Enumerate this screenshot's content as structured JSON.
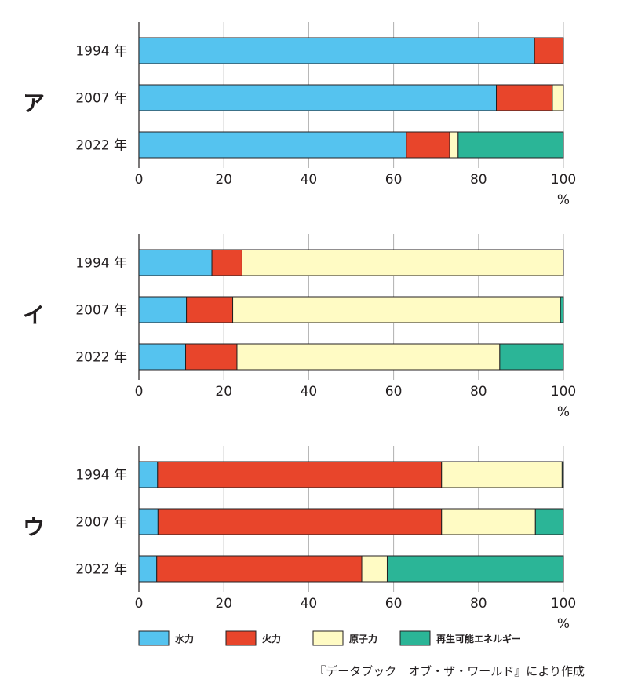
{
  "chart_data": [
    {
      "type": "bar",
      "orientation": "horizontal",
      "stacked": true,
      "panel_label": "ア",
      "categories": [
        "1994 年",
        "2007 年",
        "2022 年"
      ],
      "series": [
        {
          "name": "水力",
          "values": [
            93.2,
            84.2,
            63.0
          ]
        },
        {
          "name": "火力",
          "values": [
            6.8,
            13.2,
            10.2
          ]
        },
        {
          "name": "原子力",
          "values": [
            0.0,
            2.6,
            2.0
          ]
        },
        {
          "name": "再生可能エネルギー",
          "values": [
            0.0,
            0.0,
            24.8
          ]
        }
      ],
      "xlim": [
        0,
        100
      ],
      "xticks": [
        0,
        20,
        40,
        60,
        80,
        100
      ],
      "xunit": "%",
      "grid": true
    },
    {
      "type": "bar",
      "orientation": "horizontal",
      "stacked": true,
      "panel_label": "イ",
      "categories": [
        "1994 年",
        "2007 年",
        "2022 年"
      ],
      "series": [
        {
          "name": "水力",
          "values": [
            17.2,
            11.2,
            11.0
          ]
        },
        {
          "name": "火力",
          "values": [
            7.1,
            10.9,
            12.1
          ]
        },
        {
          "name": "原子力",
          "values": [
            75.7,
            77.2,
            61.9
          ]
        },
        {
          "name": "再生可能エネルギー",
          "values": [
            0.0,
            0.7,
            15.0
          ]
        }
      ],
      "xlim": [
        0,
        100
      ],
      "xticks": [
        0,
        20,
        40,
        60,
        80,
        100
      ],
      "xunit": "%",
      "grid": true
    },
    {
      "type": "bar",
      "orientation": "horizontal",
      "stacked": true,
      "panel_label": "ウ",
      "categories": [
        "1994 年",
        "2007 年",
        "2022 年"
      ],
      "series": [
        {
          "name": "水力",
          "values": [
            4.4,
            4.5,
            4.2
          ]
        },
        {
          "name": "火力",
          "values": [
            66.9,
            66.8,
            48.3
          ]
        },
        {
          "name": "原子力",
          "values": [
            28.4,
            22.1,
            6.0
          ]
        },
        {
          "name": "再生可能エネルギー",
          "values": [
            0.3,
            6.6,
            41.5
          ]
        }
      ],
      "xlim": [
        0,
        100
      ],
      "xticks": [
        0,
        20,
        40,
        60,
        80,
        100
      ],
      "xunit": "%",
      "grid": true
    }
  ],
  "legend": {
    "placement": "bottom",
    "items": [
      {
        "label": "水力",
        "color": "#55c3ef"
      },
      {
        "label": "火力",
        "color": "#e8452b"
      },
      {
        "label": "原子力",
        "color": "#fffbc4"
      },
      {
        "label": "再生可能エネルギー",
        "color": "#2bb597"
      }
    ]
  },
  "source": "『データブック　オブ・ザ・ワールド』により作成",
  "colors": {
    "hydro": "#55c3ef",
    "thermal": "#e8452b",
    "nuclear": "#fffbc4",
    "renewable": "#2bb597",
    "grid": "#b0b0b0",
    "axis": "#231f20"
  }
}
